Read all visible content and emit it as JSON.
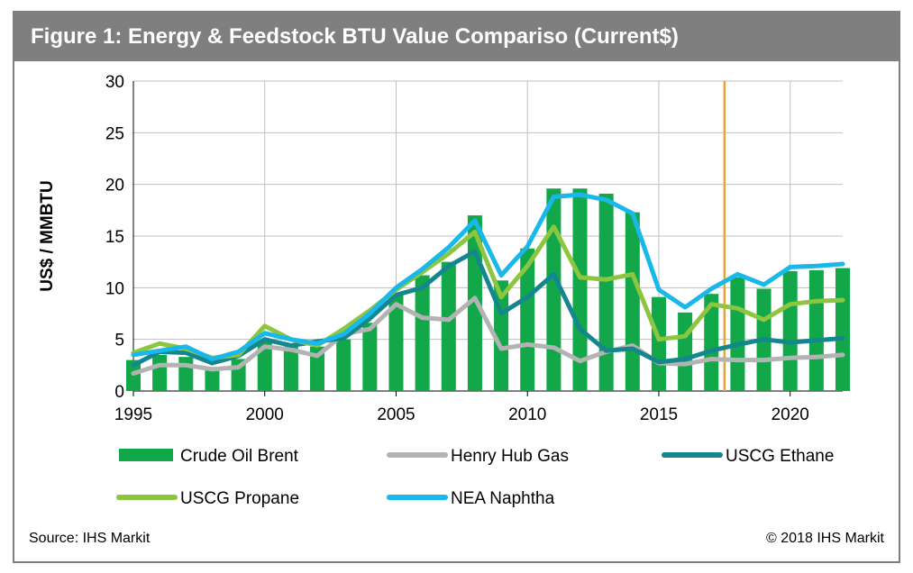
{
  "header": {
    "title": "Figure 1: Energy & Feedstock BTU Value Compariso (Current$)"
  },
  "footer": {
    "source": "Source: IHS Markit",
    "copyright": "© 2018 IHS Markit"
  },
  "colors": {
    "title_bar": "#7f7f7f",
    "crude_oil_brent": "#12a84a",
    "henry_hub_gas": "#b3b3b3",
    "usceg_ethane": "#14868d",
    "usceg_propane": "#8cc63f",
    "nea_naphtha": "#1ab7ea",
    "forecast_marker": "#e8a33d",
    "grid": "#bfbfbf"
  },
  "chart_data": {
    "type": "bar",
    "title": "Figure 1: Energy & Feedstock BTU Value Compariso (Current$)",
    "ylabel": "US$ / MMBTU",
    "xlabel": "",
    "ylim": [
      0,
      30
    ],
    "y_ticks": [
      "0",
      "5",
      "10",
      "15",
      "20",
      "25",
      "30"
    ],
    "x_ticks": [
      "1995",
      "2000",
      "2005",
      "2010",
      "2015",
      "2020"
    ],
    "grid": true,
    "forecast_marker_year": 2017.5,
    "x": [
      1995,
      1996,
      1997,
      1998,
      1999,
      2000,
      2001,
      2002,
      2003,
      2004,
      2005,
      2006,
      2007,
      2008,
      2009,
      2010,
      2011,
      2012,
      2013,
      2014,
      2015,
      2016,
      2017,
      2018,
      2019,
      2020,
      2021,
      2022
    ],
    "series": [
      {
        "name": "Crude Oil Brent",
        "kind": "bar",
        "values": [
          3.0,
          3.5,
          3.3,
          2.2,
          3.1,
          4.9,
          4.3,
          4.3,
          5.0,
          6.6,
          9.4,
          11.2,
          12.5,
          17.0,
          10.7,
          13.8,
          19.6,
          19.6,
          19.1,
          17.3,
          9.1,
          7.6,
          9.4,
          11.0,
          9.9,
          11.6,
          11.7,
          11.9
        ]
      },
      {
        "name": "Henry Hub Gas",
        "kind": "line",
        "values": [
          1.7,
          2.5,
          2.5,
          2.1,
          2.3,
          4.3,
          4.0,
          3.4,
          5.5,
          6.0,
          8.4,
          7.1,
          6.9,
          9.0,
          4.1,
          4.5,
          4.2,
          2.9,
          3.8,
          4.4,
          2.7,
          2.6,
          3.1,
          3.0,
          3.0,
          3.2,
          3.3,
          3.5
        ]
      },
      {
        "name": "USCG Ethane",
        "kind": "line",
        "values": [
          2.5,
          3.8,
          3.7,
          2.7,
          3.4,
          5.0,
          4.4,
          4.8,
          5.1,
          7.0,
          9.3,
          10.0,
          12.1,
          13.5,
          7.5,
          9.1,
          11.3,
          6.0,
          3.9,
          4.1,
          2.8,
          3.1,
          3.9,
          4.5,
          5.0,
          4.7,
          4.9,
          5.1
        ]
      },
      {
        "name": "USCG Propane",
        "kind": "line",
        "values": [
          3.7,
          4.6,
          4.1,
          3.2,
          3.5,
          6.3,
          5.0,
          4.4,
          6.0,
          7.8,
          9.8,
          11.5,
          13.3,
          15.4,
          9.1,
          12.1,
          15.9,
          11.0,
          10.8,
          11.3,
          5.0,
          5.3,
          8.4,
          8.0,
          6.9,
          8.4,
          8.7,
          8.8
        ]
      },
      {
        "name": "NEA Naphtha",
        "kind": "line",
        "values": [
          3.5,
          3.9,
          4.3,
          3.1,
          3.8,
          5.6,
          5.0,
          4.6,
          5.5,
          7.5,
          10.0,
          11.8,
          13.9,
          16.5,
          11.2,
          14.0,
          18.8,
          19.0,
          18.5,
          17.2,
          9.8,
          8.1,
          9.9,
          11.3,
          10.3,
          12.0,
          12.1,
          12.3
        ]
      }
    ],
    "legend": [
      "Crude Oil Brent",
      "Henry Hub Gas",
      "USCG Ethane",
      "USCG Propane",
      "NEA Naphtha"
    ],
    "legend_position": "bottom"
  }
}
